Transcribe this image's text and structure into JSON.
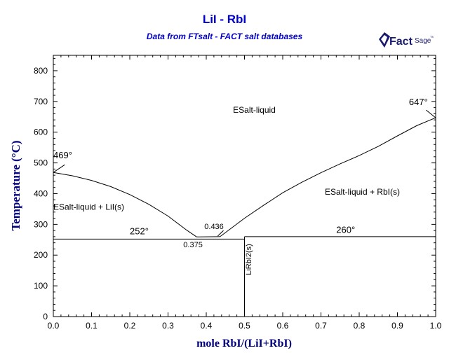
{
  "logo": {
    "brand": "Fact",
    "suffix": "Sage",
    "mark": "TM"
  },
  "chart_data": {
    "type": "line",
    "title": "LiI - RbI",
    "subtitle": "Data from FTsalt - FACT salt databases",
    "xlabel": "mole RbI/(LiI+RbI)",
    "ylabel": "Temperature (°C)",
    "xlim": [
      0,
      1
    ],
    "ylim": [
      0,
      850
    ],
    "xticks": [
      0,
      0.1,
      0.2,
      0.3,
      0.4,
      0.5,
      0.6,
      0.7,
      0.8,
      0.9,
      1
    ],
    "xtick_labels": [
      "0.0",
      "0.1",
      "0.2",
      "0.3",
      "0.4",
      "0.5",
      "0.6",
      "0.7",
      "0.8",
      "0.9",
      "1.0"
    ],
    "yticks": [
      0,
      100,
      200,
      300,
      400,
      500,
      600,
      700,
      800
    ],
    "grid": false,
    "series": [
      {
        "x": [
          0,
          0.05,
          0.1,
          0.15,
          0.2,
          0.25,
          0.3,
          0.35,
          0.375
        ],
        "y": [
          469,
          458,
          443,
          423,
          397,
          365,
          327,
          280,
          259
        ]
      },
      {
        "x": [
          0.436,
          0.5,
          0.55,
          0.6,
          0.65,
          0.7,
          0.75,
          0.8,
          0.85,
          0.9,
          0.95,
          1.0
        ],
        "y": [
          260,
          320,
          362,
          403,
          437,
          468,
          497,
          524,
          554,
          588,
          621,
          647
        ]
      },
      {
        "x": [
          0,
          0.5
        ],
        "y": [
          252,
          252
        ]
      },
      {
        "x": [
          0.375,
          0.436
        ],
        "y": [
          259,
          260
        ]
      },
      {
        "x": [
          0.5,
          1.0
        ],
        "y": [
          260,
          260
        ]
      },
      {
        "x": [
          0.5,
          0.5
        ],
        "y": [
          0,
          260
        ]
      }
    ],
    "annotations": [
      {
        "text": "ESalt-liquid",
        "x": 0.47,
        "y": 663
      },
      {
        "text": "ESalt-liquid + RbI(s)",
        "x": 0.71,
        "y": 397
      },
      {
        "text": "ESalt-liquid + LiI(s)",
        "x": 0.0,
        "y": 348
      },
      {
        "text": "469°",
        "x": 0.0,
        "y": 515
      },
      {
        "text": "647°",
        "x": 0.93,
        "y": 688
      },
      {
        "text": "252°",
        "x": 0.2,
        "y": 268
      },
      {
        "text": "260°",
        "x": 0.74,
        "y": 272
      },
      {
        "text": "0.436",
        "x": 0.395,
        "y": 285
      },
      {
        "text": "0.375",
        "x": 0.34,
        "y": 226
      },
      {
        "text": "LiRbI2(s)",
        "x": 0.51,
        "y": 135
      }
    ],
    "colors": {
      "axis": "#000000",
      "curve": "#000000",
      "title": "#0000cc",
      "axis_label": "#000080"
    }
  }
}
